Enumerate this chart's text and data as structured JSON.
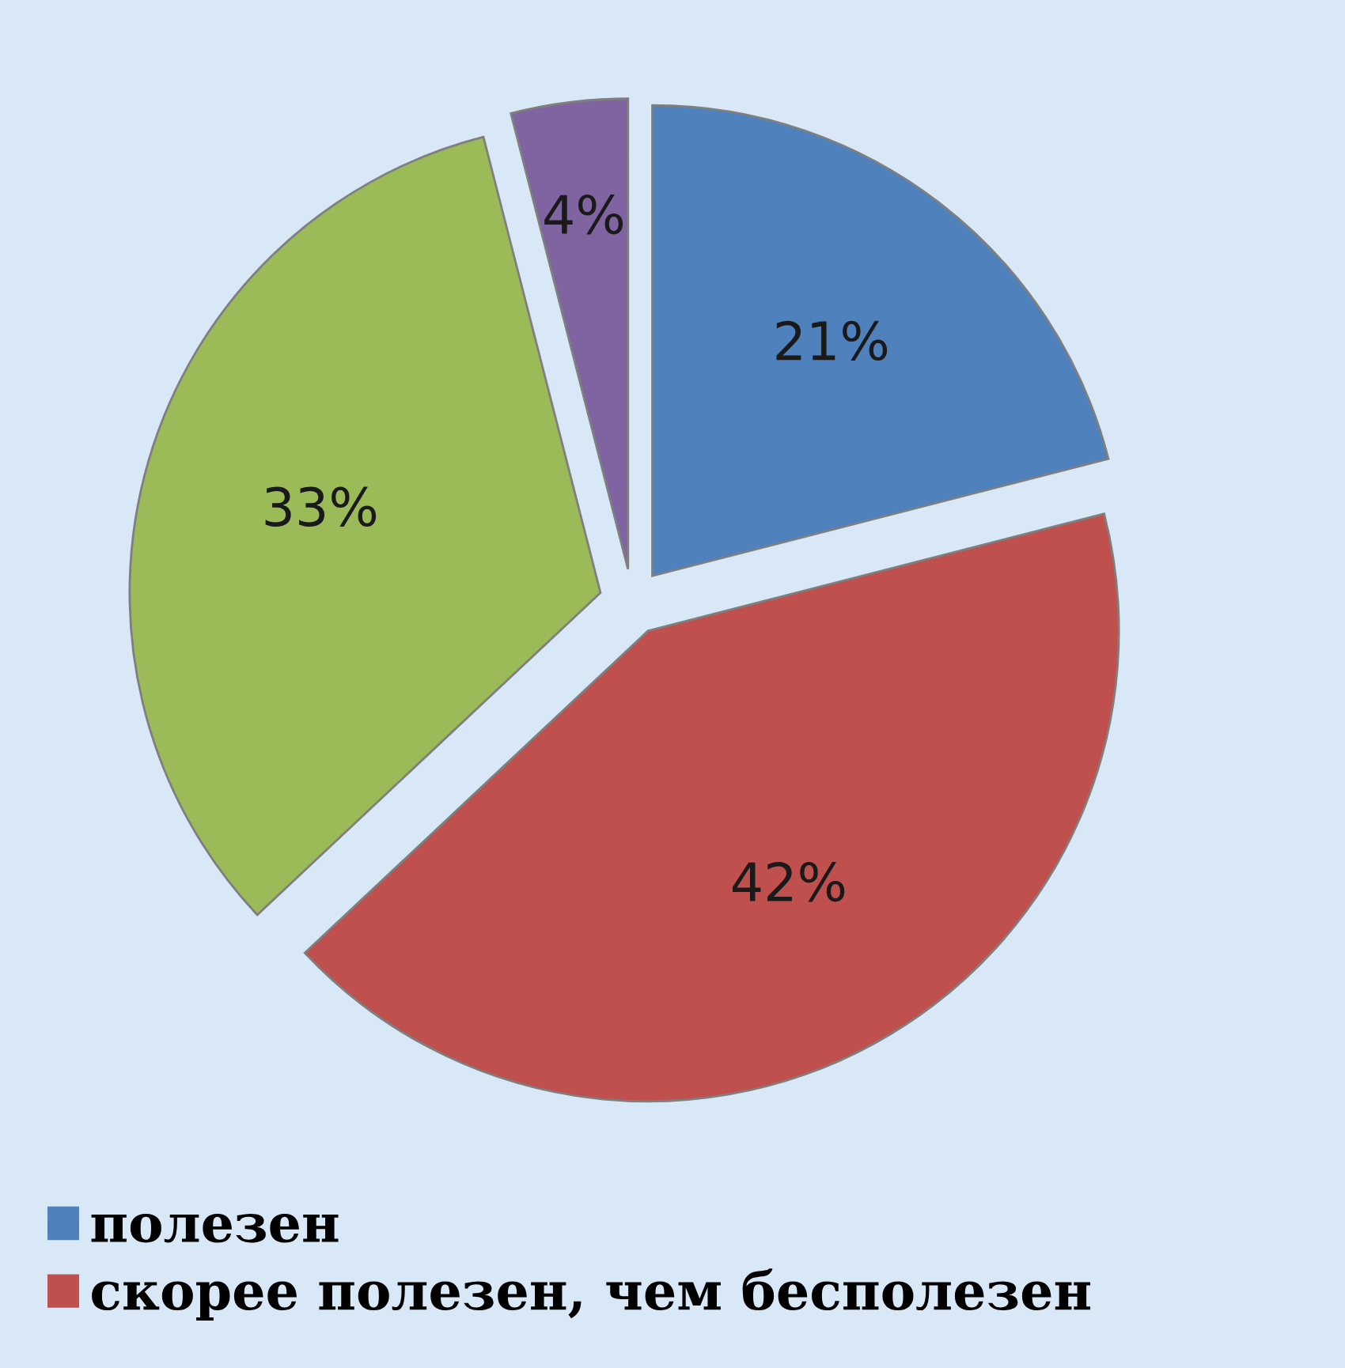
{
  "chart_data": {
    "type": "pie",
    "categories": [
      "полезен",
      "скорее полезен, чем бесполезен",
      null,
      null
    ],
    "values": [
      21,
      42,
      33,
      4
    ],
    "colors": [
      "#4f81bd",
      "#c0504d",
      "#9bbb59",
      "#8064a2"
    ],
    "value_labels": [
      "21%",
      "42%",
      "33%",
      "4%"
    ],
    "legend": "bottom left"
  }
}
